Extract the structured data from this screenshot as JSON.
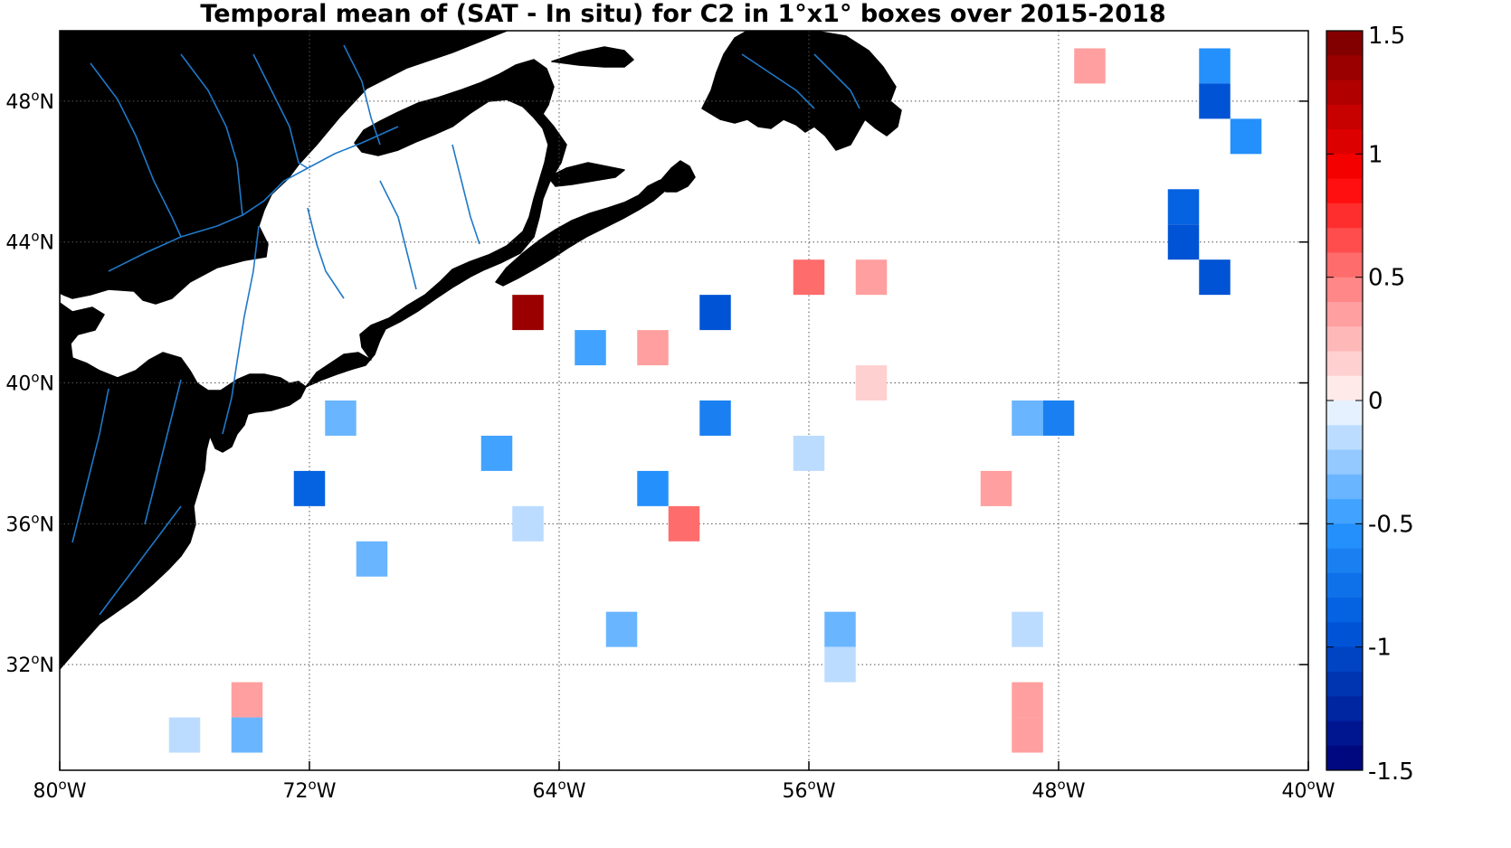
{
  "title": "Temporal mean of (SAT - In situ) for C2 in 1°x1° boxes over 2015-2018",
  "colors": {
    "land": "#808080",
    "coast": "#000000",
    "river": "#1f78c8",
    "grid": "#555555",
    "background": "#ffffff"
  },
  "chart_data": {
    "type": "heatmap",
    "title": "Temporal mean of (SAT - In situ) for C2 in 1°x1° boxes over 2015-2018",
    "projection": "lon-lat",
    "xlim": [
      -80,
      -40
    ],
    "ylim": [
      29,
      50
    ],
    "x_ticks": [
      {
        "value": -80,
        "label": "80",
        "suffix": "W"
      },
      {
        "value": -72,
        "label": "72",
        "suffix": "W"
      },
      {
        "value": -64,
        "label": "64",
        "suffix": "W"
      },
      {
        "value": -56,
        "label": "56",
        "suffix": "W"
      },
      {
        "value": -48,
        "label": "48",
        "suffix": "W"
      },
      {
        "value": -40,
        "label": "40",
        "suffix": "W"
      }
    ],
    "y_ticks": [
      {
        "value": 32,
        "label": "32",
        "suffix": "N"
      },
      {
        "value": 36,
        "label": "36",
        "suffix": "N"
      },
      {
        "value": 40,
        "label": "40",
        "suffix": "N"
      },
      {
        "value": 44,
        "label": "44",
        "suffix": "N"
      },
      {
        "value": 48,
        "label": "48",
        "suffix": "N"
      }
    ],
    "grid": true,
    "colorbar": {
      "min": -1.5,
      "max": 1.5,
      "levels": 30,
      "tick_values": [
        1.5,
        1,
        0.5,
        0,
        -0.5,
        -1,
        -1.5
      ],
      "tick_labels": [
        "1.5",
        "1",
        "0.5",
        "0",
        "-0.5",
        "-1",
        "-1.5"
      ],
      "colormap": "blue-white-red"
    },
    "cells": [
      {
        "lon": -47,
        "lat": 49,
        "value": 0.3
      },
      {
        "lon": -43,
        "lat": 49,
        "value": -0.6
      },
      {
        "lon": -43,
        "lat": 48,
        "value": -1.0
      },
      {
        "lon": -42,
        "lat": 47,
        "value": -0.6
      },
      {
        "lon": -44,
        "lat": 45,
        "value": -0.8
      },
      {
        "lon": -44,
        "lat": 44,
        "value": -0.9
      },
      {
        "lon": -43,
        "lat": 43,
        "value": -0.9
      },
      {
        "lon": -56,
        "lat": 43,
        "value": 0.5
      },
      {
        "lon": -54,
        "lat": 43,
        "value": 0.3
      },
      {
        "lon": -65,
        "lat": 42,
        "value": 1.4
      },
      {
        "lon": -59,
        "lat": 42,
        "value": -0.9
      },
      {
        "lon": -63,
        "lat": 41,
        "value": -0.5
      },
      {
        "lon": -61,
        "lat": 41,
        "value": 0.3
      },
      {
        "lon": -54,
        "lat": 40,
        "value": 0.1
      },
      {
        "lon": -71,
        "lat": 39,
        "value": -0.3
      },
      {
        "lon": -59,
        "lat": 39,
        "value": -0.7
      },
      {
        "lon": -49,
        "lat": 39,
        "value": -0.3
      },
      {
        "lon": -48,
        "lat": 39,
        "value": -0.7
      },
      {
        "lon": -66,
        "lat": 38,
        "value": -0.5
      },
      {
        "lon": -56,
        "lat": 38,
        "value": -0.2
      },
      {
        "lon": -72,
        "lat": 37,
        "value": -0.8
      },
      {
        "lon": -61,
        "lat": 37,
        "value": -0.6
      },
      {
        "lon": -50,
        "lat": 37,
        "value": 0.3
      },
      {
        "lon": -60,
        "lat": 36,
        "value": 0.5
      },
      {
        "lon": -65,
        "lat": 36,
        "value": -0.2
      },
      {
        "lon": -70,
        "lat": 35,
        "value": -0.3
      },
      {
        "lon": -62,
        "lat": 33,
        "value": -0.3
      },
      {
        "lon": -55,
        "lat": 33,
        "value": -0.4
      },
      {
        "lon": -49,
        "lat": 33,
        "value": -0.2
      },
      {
        "lon": -55,
        "lat": 32,
        "value": -0.2
      },
      {
        "lon": -74,
        "lat": 31,
        "value": 0.3
      },
      {
        "lon": -49,
        "lat": 31,
        "value": 0.4
      },
      {
        "lon": -76,
        "lat": 30,
        "value": -0.2
      },
      {
        "lon": -74,
        "lat": 30,
        "value": -0.3
      },
      {
        "lon": -49,
        "lat": 30,
        "value": 0.4
      }
    ]
  }
}
